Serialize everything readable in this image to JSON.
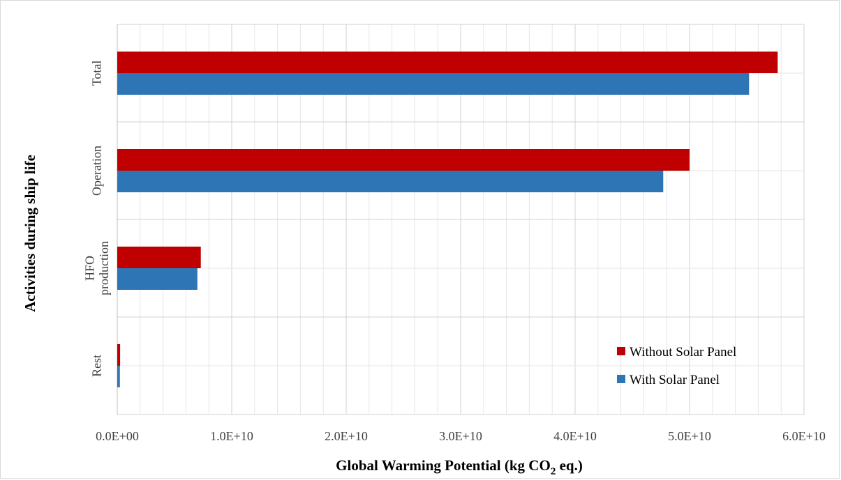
{
  "chart_data": {
    "type": "bar",
    "orientation": "horizontal",
    "categories": [
      "Total",
      "Operation",
      "HFO production",
      "Rest"
    ],
    "series": [
      {
        "name": "Without Solar Panel",
        "color": "#c00000",
        "values": [
          57700000000.0,
          50000000000.0,
          7300000000.0,
          250000000.0
        ]
      },
      {
        "name": "With Solar Panel",
        "color": "#2e75b6",
        "values": [
          55200000000.0,
          47700000000.0,
          7000000000.0,
          230000000.0
        ]
      }
    ],
    "xlim": [
      0,
      60000000000.0
    ],
    "xticks": [
      "0.0E+00",
      "1.0E+10",
      "2.0E+10",
      "3.0E+10",
      "4.0E+10",
      "5.0E+10",
      "6.0E+10"
    ],
    "xlabel": {
      "main": "Global Warming  Potential (kg CO",
      "sub": "2",
      "tail": " eq.)"
    },
    "ylabel": "Activities during ship life",
    "grid": true,
    "legend_position": "bottom-right"
  }
}
